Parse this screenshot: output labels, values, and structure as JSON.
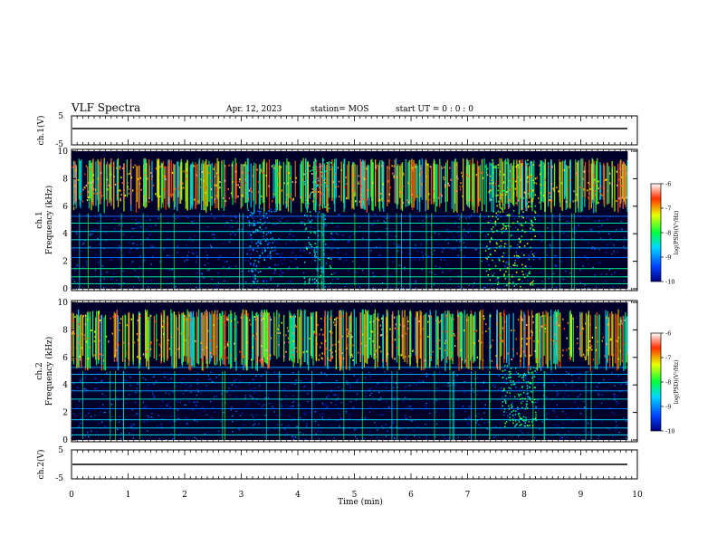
{
  "header": {
    "title": "VLF Spectra",
    "date": "Apr. 12, 2023",
    "station": "station= MOS",
    "start": "start  UT =   0 : 0  : 0"
  },
  "xaxis": {
    "label": "Time  (min)",
    "ticks": [
      "0",
      "1",
      "2",
      "3",
      "4",
      "5",
      "6",
      "7",
      "8",
      "9",
      "10"
    ]
  },
  "panels": {
    "ch1v": {
      "ylabel": "ch.1(V)",
      "ticks": [
        "5",
        "-5"
      ]
    },
    "ch1": {
      "ylabel_top": "ch.1",
      "ylabel_bottom": "Frequency  (kHz)",
      "ticks": [
        "10",
        "8",
        "6",
        "4",
        "2",
        "0"
      ]
    },
    "ch2": {
      "ylabel_top": "ch.2",
      "ylabel_bottom": "Frequency  (kHz)",
      "ticks": [
        "10",
        "8",
        "6",
        "4",
        "2",
        "0"
      ]
    },
    "ch2v": {
      "ylabel": "ch.2(V)",
      "ticks": [
        "5",
        "-5"
      ]
    }
  },
  "colorbars": [
    {
      "label": "log(PSD)(V²/Hz)",
      "ticks": [
        "-6",
        "-7",
        "-8",
        "-9",
        "-10"
      ]
    },
    {
      "label": "log(PSD)(V²/Hz)",
      "ticks": [
        "-6",
        "-7",
        "-8",
        "-9",
        "-10"
      ]
    }
  ],
  "colors": {
    "low": "#000080",
    "mid": "#00ff40",
    "high": "#ff0000",
    "bg": "#000033"
  },
  "chart_data": [
    {
      "type": "line",
      "name": "ch.1(V)",
      "xlim": [
        0,
        10
      ],
      "ylim": [
        -5,
        5
      ],
      "x": [
        0,
        10
      ],
      "values": [
        0,
        0
      ]
    },
    {
      "type": "heatmap",
      "name": "ch.1",
      "xlabel": "Time  (min)",
      "ylabel": "Frequency  (kHz)",
      "xlim": [
        0,
        10
      ],
      "ylim": [
        0,
        10
      ],
      "zlim": [
        -10,
        -6
      ],
      "features": [
        {
          "t_start": 7.3,
          "t_end": 8.2,
          "f_low": 0.2,
          "f_high": 9.5,
          "level": -7.5
        },
        {
          "t_start": 4.1,
          "t_end": 4.6,
          "f_low": 0.2,
          "f_high": 9.5,
          "level": -8.3
        },
        {
          "t_start": 3.1,
          "t_end": 3.6,
          "f_low": 0.5,
          "f_high": 6.0,
          "level": -8.8
        }
      ],
      "band_kHz": [
        5.5,
        9.5
      ]
    },
    {
      "type": "heatmap",
      "name": "ch.2",
      "xlabel": "Time  (min)",
      "ylabel": "Frequency  (kHz)",
      "xlim": [
        0,
        10
      ],
      "ylim": [
        0,
        10
      ],
      "zlim": [
        -10,
        -6
      ],
      "features": [
        {
          "t_start": 7.6,
          "t_end": 8.2,
          "f_low": 1.0,
          "f_high": 5.5,
          "level": -8.0
        }
      ],
      "band_kHz": [
        5.0,
        9.5
      ]
    },
    {
      "type": "line",
      "name": "ch.2(V)",
      "xlim": [
        0,
        10
      ],
      "ylim": [
        -5,
        5
      ],
      "x": [
        0,
        10
      ],
      "values": [
        0,
        0
      ]
    }
  ]
}
